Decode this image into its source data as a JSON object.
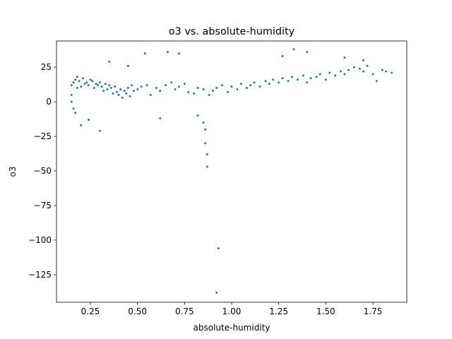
{
  "chart_data": {
    "type": "scatter",
    "title": "o3 vs. absolute-humidity",
    "xlabel": "absolute-humidity",
    "ylabel": "o3",
    "xlim": [
      0.07,
      1.93
    ],
    "ylim": [
      -145,
      44
    ],
    "xticks": [
      0.25,
      0.5,
      0.75,
      1.0,
      1.25,
      1.5,
      1.75
    ],
    "xtick_labels": [
      "0.25",
      "0.50",
      "0.75",
      "1.00",
      "1.25",
      "1.50",
      "1.75"
    ],
    "yticks": [
      25,
      0,
      -25,
      -50,
      -75,
      -100,
      -125
    ],
    "ytick_labels": [
      "25",
      "0",
      "−25",
      "−50",
      "−75",
      "−100",
      "−125"
    ],
    "grid": false,
    "color": "#1f77b4",
    "series": [
      {
        "marker_size": 1.5,
        "points": [
          [
            0.15,
            12
          ],
          [
            0.15,
            5
          ],
          [
            0.15,
            0
          ],
          [
            0.16,
            14
          ],
          [
            0.17,
            16
          ],
          [
            0.18,
            18
          ],
          [
            0.16,
            -5
          ],
          [
            0.17,
            -8
          ],
          [
            0.18,
            10
          ],
          [
            0.19,
            15
          ],
          [
            0.2,
            11
          ],
          [
            0.21,
            17
          ],
          [
            0.22,
            13
          ],
          [
            0.23,
            14
          ],
          [
            0.24,
            12
          ],
          [
            0.25,
            16
          ],
          [
            0.26,
            15
          ],
          [
            0.27,
            10
          ],
          [
            0.28,
            13
          ],
          [
            0.29,
            12
          ],
          [
            0.3,
            14
          ],
          [
            0.31,
            11
          ],
          [
            0.32,
            8
          ],
          [
            0.33,
            13
          ],
          [
            0.34,
            9
          ],
          [
            0.35,
            12
          ],
          [
            0.36,
            10
          ],
          [
            0.37,
            6
          ],
          [
            0.38,
            11
          ],
          [
            0.39,
            7
          ],
          [
            0.4,
            5
          ],
          [
            0.41,
            9
          ],
          [
            0.42,
            3
          ],
          [
            0.43,
            8
          ],
          [
            0.44,
            6
          ],
          [
            0.45,
            10
          ],
          [
            0.46,
            4
          ],
          [
            0.47,
            12
          ],
          [
            0.48,
            8
          ],
          [
            0.5,
            9
          ],
          [
            0.52,
            11
          ],
          [
            0.55,
            12
          ],
          [
            0.57,
            5
          ],
          [
            0.6,
            10
          ],
          [
            0.62,
            8
          ],
          [
            0.65,
            12
          ],
          [
            0.68,
            14
          ],
          [
            0.7,
            9
          ],
          [
            0.72,
            11
          ],
          [
            0.75,
            13
          ],
          [
            0.77,
            7
          ],
          [
            0.8,
            6
          ],
          [
            0.82,
            10
          ],
          [
            0.85,
            9
          ],
          [
            0.88,
            5
          ],
          [
            0.9,
            8
          ],
          [
            0.92,
            10
          ],
          [
            0.95,
            12
          ],
          [
            0.98,
            7
          ],
          [
            1.0,
            11
          ],
          [
            1.03,
            9
          ],
          [
            1.05,
            13
          ],
          [
            1.08,
            10
          ],
          [
            1.1,
            12
          ],
          [
            1.12,
            14
          ],
          [
            1.15,
            11
          ],
          [
            1.18,
            15
          ],
          [
            1.2,
            13
          ],
          [
            1.22,
            16
          ],
          [
            1.25,
            14
          ],
          [
            1.27,
            17
          ],
          [
            1.3,
            15
          ],
          [
            1.32,
            18
          ],
          [
            1.35,
            16
          ],
          [
            1.38,
            19
          ],
          [
            1.4,
            14
          ],
          [
            1.42,
            17
          ],
          [
            1.45,
            18
          ],
          [
            1.47,
            20
          ],
          [
            1.5,
            16
          ],
          [
            1.52,
            21
          ],
          [
            1.55,
            19
          ],
          [
            1.58,
            22
          ],
          [
            1.6,
            20
          ],
          [
            1.62,
            23
          ],
          [
            1.65,
            25
          ],
          [
            1.68,
            24
          ],
          [
            1.7,
            22
          ],
          [
            1.72,
            26
          ],
          [
            1.75,
            20
          ],
          [
            1.77,
            15
          ],
          [
            1.8,
            23
          ],
          [
            1.82,
            22
          ],
          [
            1.85,
            21
          ],
          [
            0.2,
            -17
          ],
          [
            0.24,
            -13
          ],
          [
            0.3,
            -21
          ],
          [
            0.35,
            29
          ],
          [
            0.45,
            26
          ],
          [
            0.54,
            35
          ],
          [
            0.66,
            36
          ],
          [
            0.72,
            35
          ],
          [
            0.62,
            -12
          ],
          [
            0.82,
            -10
          ],
          [
            0.85,
            -15
          ],
          [
            0.86,
            -20
          ],
          [
            0.86,
            -30
          ],
          [
            0.87,
            -38
          ],
          [
            0.87,
            -47
          ],
          [
            0.93,
            -106
          ],
          [
            0.92,
            -138
          ],
          [
            1.33,
            38
          ],
          [
            1.4,
            36
          ],
          [
            1.27,
            33
          ],
          [
            1.6,
            32
          ],
          [
            1.7,
            30
          ]
        ]
      }
    ]
  }
}
